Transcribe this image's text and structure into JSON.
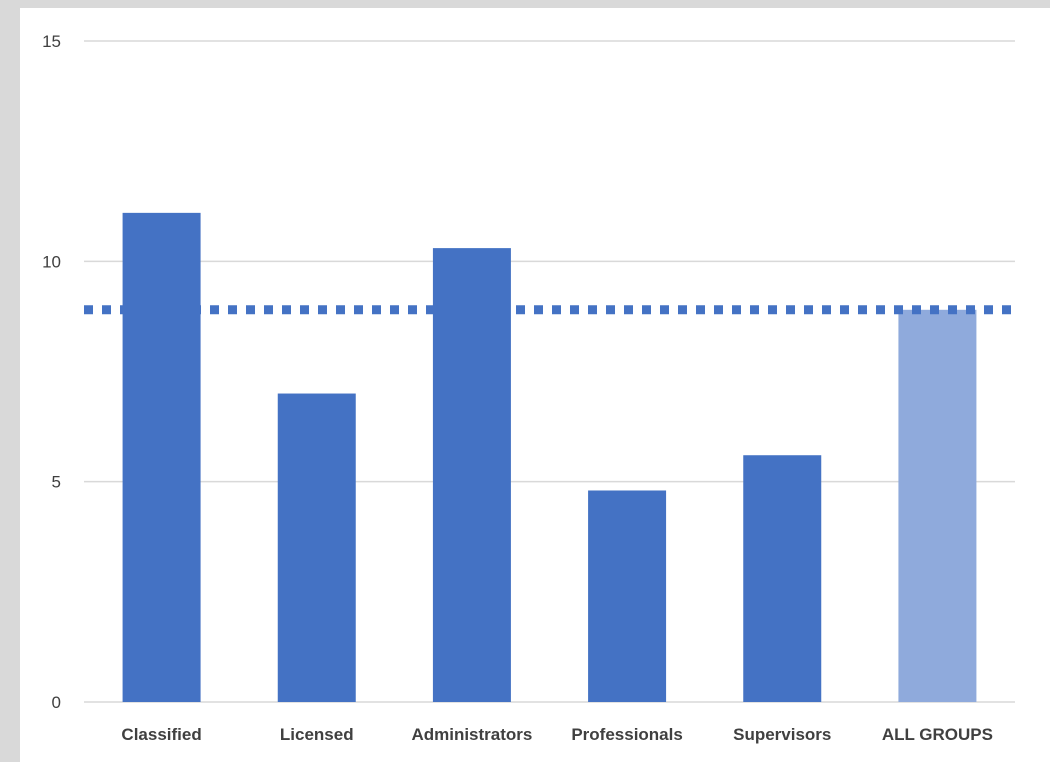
{
  "chart_data": {
    "type": "bar",
    "categories": [
      "Classified",
      "Licensed",
      "Administrators",
      "Professionals",
      "Supervisors",
      "ALL GROUPS"
    ],
    "values": [
      11.1,
      7.0,
      10.3,
      4.8,
      5.6,
      8.9
    ],
    "highlight_category": "ALL GROUPS",
    "reference_line": {
      "value": 8.9,
      "style": "dotted"
    },
    "yticks": [
      0,
      5,
      10,
      15
    ],
    "ylim": [
      0,
      15
    ],
    "grid": true,
    "legend": "none",
    "title": "",
    "xlabel": "",
    "ylabel": "",
    "colors": {
      "bar": "#4472c4",
      "highlight_bar": "#8faadc",
      "reference_line": "#4472c4",
      "gridline": "#d9d9d9",
      "axis_line": "#d9d9d9",
      "background": "#ffffff",
      "frame": "#d9d9d9"
    }
  }
}
